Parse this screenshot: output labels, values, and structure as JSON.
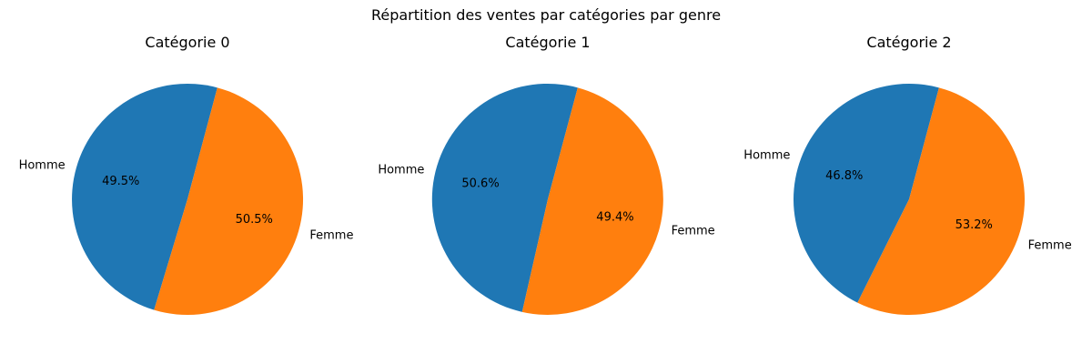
{
  "figure": {
    "suptitle": "Répartition des ventes par catégories par genre"
  },
  "chart_data": [
    {
      "type": "pie",
      "title": "Catégorie 0",
      "labels": [
        "Homme",
        "Femme"
      ],
      "values": [
        49.5,
        50.5
      ],
      "value_labels": [
        "49.5%",
        "50.5%"
      ],
      "colors": [
        "#1f77b4",
        "#ff7f0e"
      ]
    },
    {
      "type": "pie",
      "title": "Catégorie 1",
      "labels": [
        "Homme",
        "Femme"
      ],
      "values": [
        50.6,
        49.4
      ],
      "value_labels": [
        "50.6%",
        "49.4%"
      ],
      "colors": [
        "#1f77b4",
        "#ff7f0e"
      ]
    },
    {
      "type": "pie",
      "title": "Catégorie 2",
      "labels": [
        "Homme",
        "Femme"
      ],
      "values": [
        46.8,
        53.2
      ],
      "value_labels": [
        "46.8%",
        "53.2%"
      ],
      "colors": [
        "#1f77b4",
        "#ff7f0e"
      ]
    }
  ]
}
